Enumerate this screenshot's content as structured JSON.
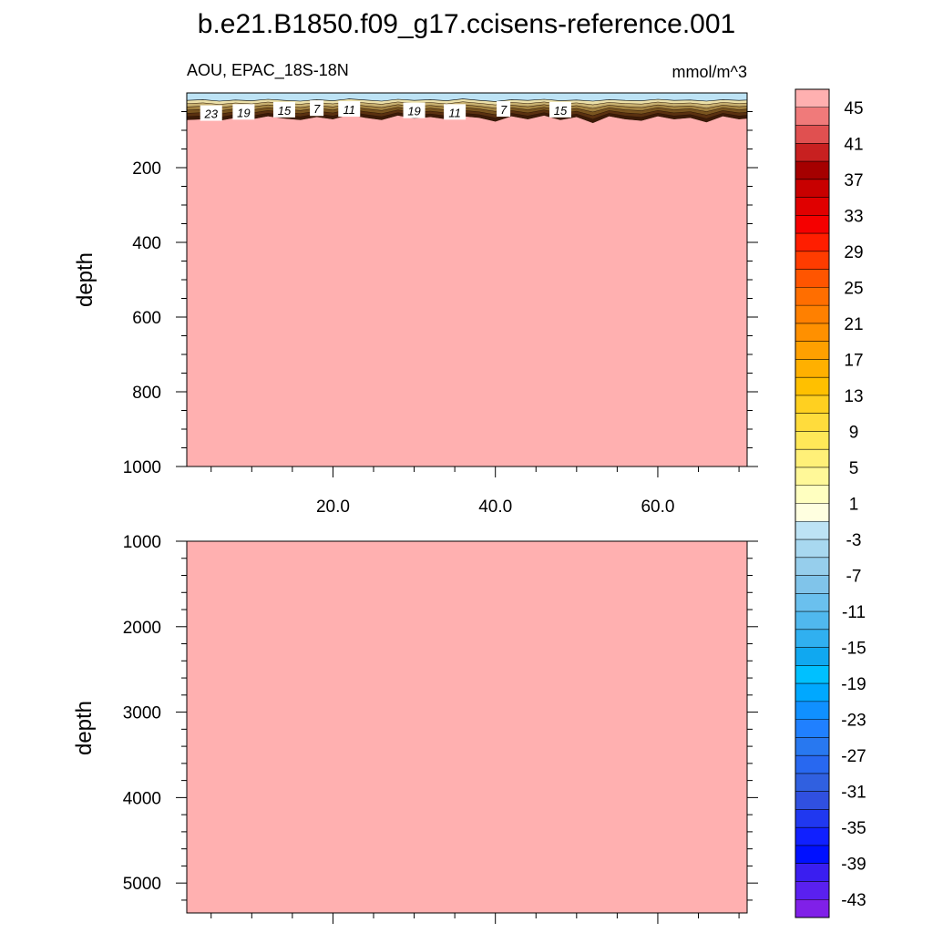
{
  "title": "b.e21.B1850.f09_g17.ccisens-reference.001",
  "subtitle_left": "AOU, EPAC_18S-18N",
  "subtitle_right": "mmol/m^3",
  "chart_data": [
    {
      "type": "heatmap",
      "panel": "upper",
      "variable": "AOU",
      "region": "EPAC_18S-18N",
      "units": "mmol/m^3",
      "ylabel": "depth",
      "xlabel": "",
      "xlim": [
        2,
        71
      ],
      "ylim": [
        1000,
        0
      ],
      "x_ticks": [
        {
          "value": 20,
          "label": "20.0"
        },
        {
          "value": 40,
          "label": "40.0"
        },
        {
          "value": 60,
          "label": "60.0"
        }
      ],
      "y_ticks": [
        {
          "value": 200,
          "label": "200"
        },
        {
          "value": 400,
          "label": "400"
        },
        {
          "value": 600,
          "label": "600"
        },
        {
          "value": 800,
          "label": "800"
        },
        {
          "value": 1000,
          "label": "1000"
        }
      ],
      "surface_layer": {
        "top_color": "#bde3f5",
        "x": [
          2,
          4,
          6,
          8,
          10,
          12,
          14,
          16,
          18,
          20,
          22,
          24,
          26,
          28,
          30,
          32,
          34,
          36,
          38,
          40,
          42,
          44,
          46,
          48,
          50,
          52,
          54,
          56,
          58,
          60,
          62,
          64,
          66,
          68,
          70,
          71
        ],
        "negative_bottom_depth": [
          20,
          18,
          22,
          19,
          21,
          17,
          20,
          22,
          18,
          21,
          16,
          19,
          22,
          17,
          20,
          18,
          21,
          16,
          20,
          23,
          18,
          20,
          17,
          21,
          19,
          22,
          18,
          20,
          21,
          17,
          20,
          19,
          22,
          18,
          20,
          19
        ],
        "transition_bottom_depth": [
          72,
          70,
          74,
          66,
          70,
          62,
          68,
          72,
          64,
          70,
          58,
          66,
          72,
          60,
          68,
          64,
          70,
          62,
          66,
          76,
          62,
          70,
          60,
          72,
          64,
          80,
          62,
          70,
          74,
          62,
          70,
          66,
          78,
          62,
          70,
          68
        ]
      },
      "deep_value_color": "#ffb0b0",
      "contour_labels": [
        {
          "text": "23",
          "x": 5,
          "depth": 55
        },
        {
          "text": "19",
          "x": 9,
          "depth": 52
        },
        {
          "text": "15",
          "x": 14,
          "depth": 46
        },
        {
          "text": "7",
          "x": 18,
          "depth": 42
        },
        {
          "text": "11",
          "x": 22,
          "depth": 44
        },
        {
          "text": "19",
          "x": 30,
          "depth": 48
        },
        {
          "text": "11",
          "x": 35,
          "depth": 52
        },
        {
          "text": "7",
          "x": 41,
          "depth": 44
        },
        {
          "text": "15",
          "x": 48,
          "depth": 46
        }
      ]
    },
    {
      "type": "heatmap",
      "panel": "lower",
      "ylabel": "depth",
      "xlim": [
        2,
        71
      ],
      "ylim": [
        5350,
        1000
      ],
      "y_ticks": [
        {
          "value": 1000,
          "label": "1000"
        },
        {
          "value": 2000,
          "label": "2000"
        },
        {
          "value": 3000,
          "label": "3000"
        },
        {
          "value": 4000,
          "label": "4000"
        },
        {
          "value": 5000,
          "label": "5000"
        }
      ],
      "deep_value_color": "#ffb0b0"
    }
  ],
  "colorbar": {
    "labels": [
      "45",
      "41",
      "37",
      "33",
      "29",
      "25",
      "21",
      "17",
      "13",
      "9",
      "5",
      "1",
      "-3",
      "-7",
      "-11",
      "-15",
      "-19",
      "-23",
      "-27",
      "-31",
      "-35",
      "-39",
      "-43"
    ],
    "colors": [
      "#ffb0b0",
      "#f07a7a",
      "#e05050",
      "#c82020",
      "#a50000",
      "#c80000",
      "#e00000",
      "#f50000",
      "#ff1e00",
      "#ff3c00",
      "#ff5500",
      "#ff6e00",
      "#ff8000",
      "#ff9000",
      "#ffa000",
      "#ffb000",
      "#ffc000",
      "#ffd020",
      "#ffdc3c",
      "#ffe858",
      "#fff078",
      "#fff898",
      "#ffffc0",
      "#ffffe0",
      "#bde3f5",
      "#a8d8f0",
      "#96ceec",
      "#80c4ea",
      "#6ac0ee",
      "#50b8ee",
      "#30b0f0",
      "#10a8f0",
      "#00c0ff",
      "#00a8ff",
      "#1090ff",
      "#2080ff",
      "#2878f0",
      "#2868f0",
      "#3060e0",
      "#3050e0",
      "#2038f0",
      "#1020ff",
      "#0010ff",
      "#3a1ef0",
      "#5a20f0",
      "#8020e8"
    ]
  }
}
